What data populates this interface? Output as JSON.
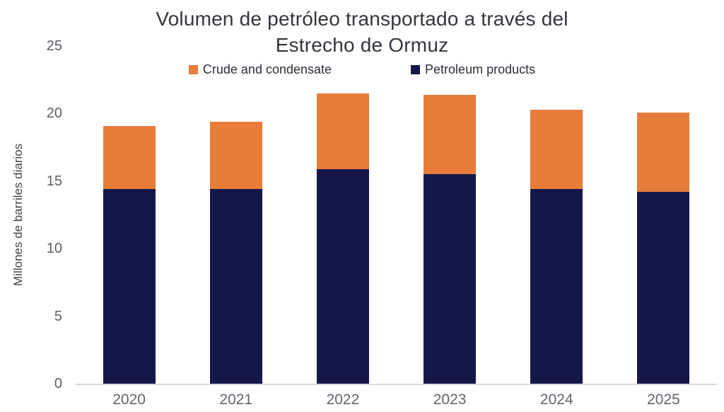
{
  "chart_data": {
    "type": "bar",
    "stacked": true,
    "title": "Volumen de petróleo transportado a través del Estrecho de Ormuz",
    "title_lines": [
      "Volumen de petróleo transportado a través del",
      "Estrecho de Ormuz"
    ],
    "ylabel": "Millones de barriles diarios",
    "xlabel": "",
    "categories": [
      "2020",
      "2021",
      "2022",
      "2023",
      "2024",
      "2025"
    ],
    "series": [
      {
        "name": "Petroleum products",
        "color": "#141849",
        "values": [
          14.4,
          14.4,
          15.9,
          15.5,
          14.4,
          14.2
        ]
      },
      {
        "name": "Crude and condensate",
        "color": "#E87C3B",
        "values": [
          4.7,
          5.0,
          5.6,
          5.9,
          5.9,
          5.9
        ]
      }
    ],
    "legend": [
      {
        "label": "Crude and condensate",
        "color": "#E87C3B"
      },
      {
        "label": "Petroleum products",
        "color": "#141849"
      }
    ],
    "legend_position": "top",
    "ylim": [
      0,
      25
    ],
    "yticks": [
      0,
      5,
      10,
      15,
      20,
      25
    ],
    "grid": false,
    "colors": {
      "axis_line": "#d9d9d9",
      "y_tick_label": "#5c5f66",
      "x_tick_label": "#63666e",
      "title": "#35353f",
      "ylabel": "#3f4147",
      "background": "#ffffff"
    }
  }
}
